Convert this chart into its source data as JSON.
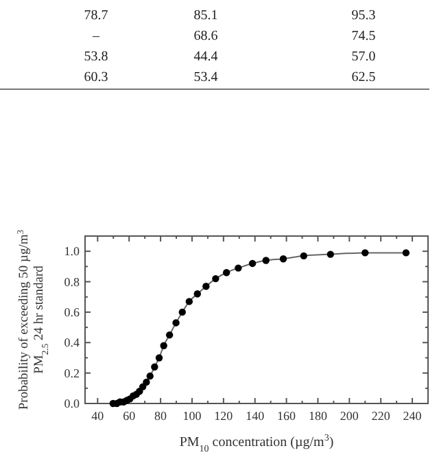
{
  "chart_data": {
    "type": "line",
    "annotations": [
      "78.7",
      "85.1",
      "95.3",
      "–",
      "68.6",
      "74.5",
      "53.8",
      "44.4",
      "57.0",
      "60.3",
      "53.4",
      "62.5"
    ],
    "xlabel": "PM$_{10}$ concentration (µg/m$^{3}$)",
    "ylabel": "Probability of exceeding 50 µg/m$^{3}$\nPM$_{2.5}$ 24 hr standard",
    "marker": "circle",
    "line_style": "solid",
    "grid": false,
    "xlim": [
      32,
      250
    ],
    "ylim": [
      0,
      1.1
    ],
    "xticks": [
      {
        "value": 40,
        "label": "40"
      },
      {
        "value": 50,
        "label": null
      },
      {
        "value": 60,
        "label": "60"
      },
      {
        "value": 70,
        "label": null
      },
      {
        "value": 80,
        "label": "80"
      },
      {
        "value": 90,
        "label": null
      },
      {
        "value": 100,
        "label": "100"
      },
      {
        "value": 110,
        "label": null
      },
      {
        "value": 120,
        "label": "120"
      },
      {
        "value": 130,
        "label": null
      },
      {
        "value": 140,
        "label": "140"
      },
      {
        "value": 150,
        "label": null
      },
      {
        "value": 160,
        "label": "160"
      },
      {
        "value": 170,
        "label": null
      },
      {
        "value": 180,
        "label": "180"
      },
      {
        "value": 190,
        "label": null
      },
      {
        "value": 200,
        "label": "200"
      },
      {
        "value": 210,
        "label": null
      },
      {
        "value": 220,
        "label": "220"
      },
      {
        "value": 230,
        "label": null
      },
      {
        "value": 240,
        "label": "240"
      }
    ],
    "yticks": [
      {
        "value": 0,
        "label": "0.0"
      },
      {
        "value": 0.1,
        "label": null
      },
      {
        "value": 0.2,
        "label": "0.2"
      },
      {
        "value": 0.3,
        "label": null
      },
      {
        "value": 0.4,
        "label": "0.4"
      },
      {
        "value": 0.5,
        "label": null
      },
      {
        "value": 0.6,
        "label": "0.6"
      },
      {
        "value": 0.7,
        "label": null
      },
      {
        "value": 0.8,
        "label": "0.8"
      },
      {
        "value": 0.9,
        "label": null
      },
      {
        "value": 1.0,
        "label": "1.0"
      }
    ],
    "series": [
      {
        "color": "#000000",
        "x": [
          49.8,
          52.2,
          54.2,
          56.5,
          58.5,
          60.5,
          62.6,
          64.6,
          66.6,
          68.7,
          71.0,
          73.3,
          76.2,
          79.1,
          82.0,
          85.7,
          89.8,
          93.8,
          98.2,
          103.4,
          108.9,
          115.0,
          121.9,
          129.4,
          138.4,
          147,
          158,
          171,
          188,
          210,
          236
        ],
        "values": [
          0,
          0.0,
          0.01,
          0.01,
          0.02,
          0.03,
          0.05,
          0.06,
          0.08,
          0.11,
          0.14,
          0.18,
          0.24,
          0.3,
          0.38,
          0.45,
          0.53,
          0.6,
          0.67,
          0.72,
          0.77,
          0.82,
          0.86,
          0.89,
          0.92,
          0.94,
          0.95,
          0.97,
          0.98,
          0.99,
          0.99
        ]
      }
    ]
  }
}
